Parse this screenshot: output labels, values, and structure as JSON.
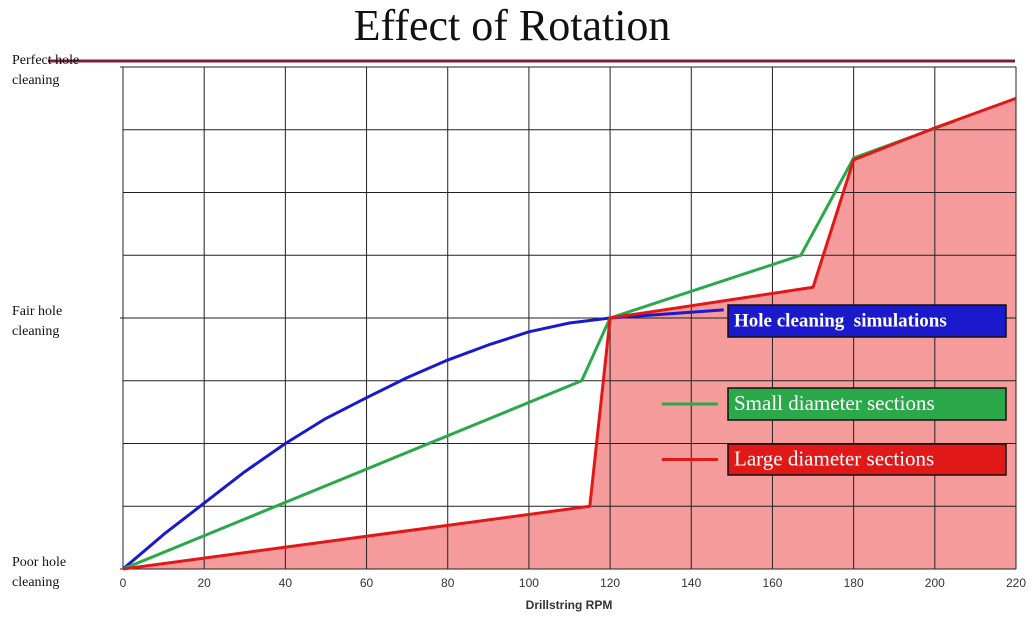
{
  "chart_data": {
    "type": "line",
    "title": "Effect of Rotation",
    "xlabel": "Drillstring RPM",
    "xlim": [
      0,
      220
    ],
    "xticks": [
      0,
      20,
      40,
      60,
      80,
      100,
      120,
      140,
      160,
      180,
      200,
      220
    ],
    "ylim": [
      0,
      8
    ],
    "yticks": [
      {
        "value": 0,
        "label": "Poor hole cleaning"
      },
      {
        "value": 4,
        "label": "Fair hole cleaning"
      },
      {
        "value": 8,
        "label": "Perfect hole cleaning"
      }
    ],
    "y_grid": [
      0,
      1,
      2,
      3,
      4,
      5,
      6,
      7,
      8
    ],
    "grid": true,
    "series": [
      {
        "name": "Hole cleaning  simulations",
        "color": "#1a1acc",
        "x": [
          0,
          10,
          20,
          30,
          40,
          50,
          60,
          70,
          80,
          90,
          100,
          110,
          120,
          148
        ],
        "values": [
          0,
          0.55,
          1.05,
          1.55,
          2.0,
          2.4,
          2.73,
          3.05,
          3.33,
          3.57,
          3.78,
          3.92,
          4.0,
          4.13
        ]
      },
      {
        "name": "Small diameter sections",
        "color": "#2aa84a",
        "x": [
          0,
          113,
          120,
          167,
          180,
          205
        ],
        "values": [
          0,
          3.0,
          4.0,
          5.0,
          6.55,
          7.14
        ]
      },
      {
        "name": "Large diameter sections",
        "color": "#e01818",
        "fill": "#f58a8a",
        "x": [
          0,
          115,
          120,
          170,
          180,
          200,
          220
        ],
        "values": [
          0,
          1.0,
          4.0,
          4.49,
          6.52,
          7.03,
          7.5
        ]
      }
    ]
  }
}
